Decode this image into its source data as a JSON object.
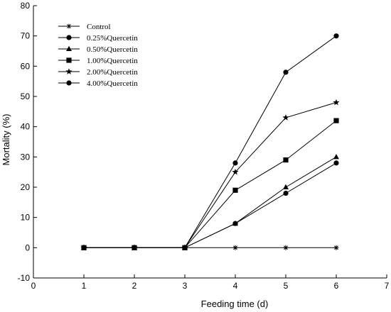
{
  "chart_data": {
    "type": "line",
    "xlabel": "Feeding time (d)",
    "ylabel": "Mortality (%)",
    "xlim": [
      0,
      7
    ],
    "ylim": [
      -10,
      80
    ],
    "xticks": [
      0,
      1,
      2,
      3,
      4,
      5,
      6,
      7
    ],
    "yticks": [
      -10,
      0,
      10,
      20,
      30,
      40,
      50,
      60,
      70,
      80
    ],
    "grid": false,
    "legend_position": "top-left",
    "series": [
      {
        "name": "Control",
        "marker": "asterisk",
        "x": [
          1,
          2,
          3,
          4,
          5,
          6
        ],
        "y": [
          0,
          0,
          0,
          0,
          0,
          0
        ]
      },
      {
        "name": "0.25%Quercetin",
        "marker": "circle",
        "x": [
          1,
          2,
          3,
          4,
          5,
          6
        ],
        "y": [
          0,
          0,
          0,
          8,
          18,
          28
        ]
      },
      {
        "name": "0.50%Quercetin",
        "marker": "triangle",
        "x": [
          1,
          2,
          3,
          4,
          5,
          6
        ],
        "y": [
          0,
          0,
          0,
          8,
          20,
          30
        ]
      },
      {
        "name": "1.00%Quercetin",
        "marker": "square",
        "x": [
          1,
          2,
          3,
          4,
          5,
          6
        ],
        "y": [
          0,
          0,
          0,
          19,
          29,
          42
        ]
      },
      {
        "name": "2.00%Quercetin",
        "marker": "star",
        "x": [
          1,
          2,
          3,
          4,
          5,
          6
        ],
        "y": [
          0,
          0,
          0,
          25,
          43,
          48
        ]
      },
      {
        "name": "4.00%Quercetin",
        "marker": "circle",
        "x": [
          1,
          2,
          3,
          4,
          5,
          6
        ],
        "y": [
          0,
          0,
          0,
          28,
          58,
          70
        ]
      }
    ]
  }
}
